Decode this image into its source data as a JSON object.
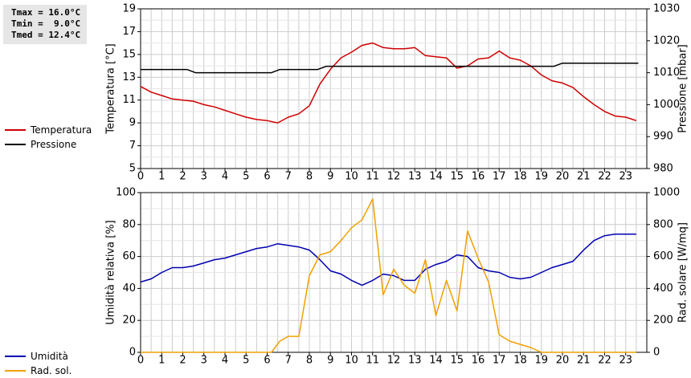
{
  "stats": [
    "Tmax = 16.0°C",
    "Tmin =  9.0°C",
    "Tmed = 12.4°C"
  ],
  "colors": {
    "temperature": "#d00000",
    "pressure": "#000000",
    "humidity": "#0000b0",
    "radiation": "#f0a000",
    "grid": "#cccccc"
  },
  "chart_data": [
    {
      "type": "line",
      "xlabel": "",
      "ylabel": "Temperatura [°C]",
      "y2label": "Pressione [mbar]",
      "xlim": [
        0,
        24
      ],
      "ylim": [
        5,
        19
      ],
      "y2lim": [
        980,
        1030
      ],
      "x_ticks": [
        "0",
        "1",
        "2",
        "3",
        "4",
        "5",
        "6",
        "7",
        "8",
        "9",
        "10",
        "11",
        "12",
        "13",
        "14",
        "15",
        "16",
        "17",
        "18",
        "19",
        "20",
        "21",
        "22",
        "23"
      ],
      "y_ticks": [
        5,
        7,
        9,
        11,
        13,
        15,
        17,
        19
      ],
      "y2_ticks": [
        980,
        990,
        1000,
        1010,
        1020,
        1030
      ],
      "grid": true,
      "legend": "left",
      "series": [
        {
          "name": "Temperatura",
          "axis": "left",
          "color": "temperature",
          "x": [
            0,
            0.5,
            1,
            1.5,
            2,
            2.5,
            3,
            3.5,
            4,
            4.5,
            5,
            5.5,
            6,
            6.5,
            7,
            7.5,
            8,
            8.5,
            9,
            9.5,
            10,
            10.5,
            11,
            11.5,
            12,
            12.5,
            13,
            13.5,
            14,
            14.5,
            15,
            15.5,
            16,
            16.5,
            17,
            17.5,
            18,
            18.5,
            19,
            19.5,
            20,
            20.5,
            21,
            21.5,
            22,
            22.5,
            23,
            23.5
          ],
          "y": [
            12.2,
            11.7,
            11.4,
            11.1,
            11.0,
            10.9,
            10.6,
            10.4,
            10.1,
            9.8,
            9.5,
            9.3,
            9.2,
            9.0,
            9.5,
            9.8,
            10.5,
            12.4,
            13.7,
            14.7,
            15.2,
            15.8,
            16.0,
            15.6,
            15.5,
            15.5,
            15.6,
            14.9,
            14.8,
            14.7,
            13.8,
            14.0,
            14.6,
            14.7,
            15.3,
            14.7,
            14.5,
            14.0,
            13.2,
            12.7,
            12.5,
            12.1,
            11.3,
            10.6,
            10.0,
            9.6,
            9.5,
            9.2
          ]
        },
        {
          "name": "Pressione",
          "axis": "right",
          "color": "pressure",
          "x": [
            0,
            2.2,
            2.6,
            6.2,
            6.6,
            8.4,
            8.8,
            19.6,
            20.0,
            23.6
          ],
          "y": [
            1011,
            1011,
            1010,
            1010,
            1011,
            1011,
            1012,
            1012,
            1013,
            1013
          ]
        }
      ]
    },
    {
      "type": "line",
      "xlabel": "",
      "ylabel": "Umidità relativa [%]",
      "y2label": "Rad. solare [W/mq]",
      "xlim": [
        0,
        24
      ],
      "ylim": [
        0,
        100
      ],
      "y2lim": [
        0,
        1000
      ],
      "x_ticks": [
        "0",
        "1",
        "2",
        "3",
        "4",
        "5",
        "6",
        "7",
        "8",
        "9",
        "10",
        "11",
        "12",
        "13",
        "14",
        "15",
        "16",
        "17",
        "18",
        "19",
        "20",
        "21",
        "22",
        "23"
      ],
      "y_ticks": [
        0,
        20,
        40,
        60,
        80,
        100
      ],
      "y2_ticks": [
        0,
        200,
        400,
        600,
        800,
        1000
      ],
      "grid": true,
      "legend": "left",
      "series": [
        {
          "name": "Umidità",
          "axis": "left",
          "color": "humidity",
          "x": [
            0,
            0.5,
            1,
            1.5,
            2,
            2.5,
            3,
            3.5,
            4,
            4.5,
            5,
            5.5,
            6,
            6.5,
            7,
            7.5,
            8,
            8.5,
            9,
            9.5,
            10,
            10.5,
            11,
            11.5,
            12,
            12.5,
            13,
            13.5,
            14,
            14.5,
            15,
            15.5,
            16,
            16.5,
            17,
            17.5,
            18,
            18.5,
            19,
            19.5,
            20,
            20.5,
            21,
            21.5,
            22,
            22.5,
            23,
            23.5
          ],
          "y": [
            44,
            46,
            50,
            53,
            53,
            54,
            56,
            58,
            59,
            61,
            63,
            65,
            66,
            68,
            67,
            66,
            64,
            58,
            51,
            49,
            45,
            42,
            45,
            49,
            48,
            45,
            45,
            52,
            55,
            57,
            61,
            60,
            53,
            51,
            50,
            47,
            46,
            47,
            50,
            53,
            55,
            57,
            64,
            70,
            73,
            74,
            74,
            74
          ]
        },
        {
          "name": "Rad. sol.",
          "axis": "right",
          "color": "radiation",
          "x": [
            0,
            6,
            6.2,
            6.6,
            7,
            7.5,
            8,
            8.5,
            9,
            9.5,
            10,
            10.5,
            11,
            11.5,
            12,
            12.5,
            13,
            13.5,
            14,
            14.5,
            15,
            15.5,
            16,
            16.5,
            17,
            17.5,
            18,
            18.5,
            19,
            23.5
          ],
          "y": [
            0,
            0,
            0,
            70,
            100,
            100,
            480,
            610,
            630,
            700,
            780,
            830,
            960,
            360,
            520,
            420,
            370,
            580,
            230,
            450,
            260,
            760,
            590,
            440,
            110,
            70,
            50,
            30,
            0,
            0
          ]
        }
      ]
    }
  ]
}
